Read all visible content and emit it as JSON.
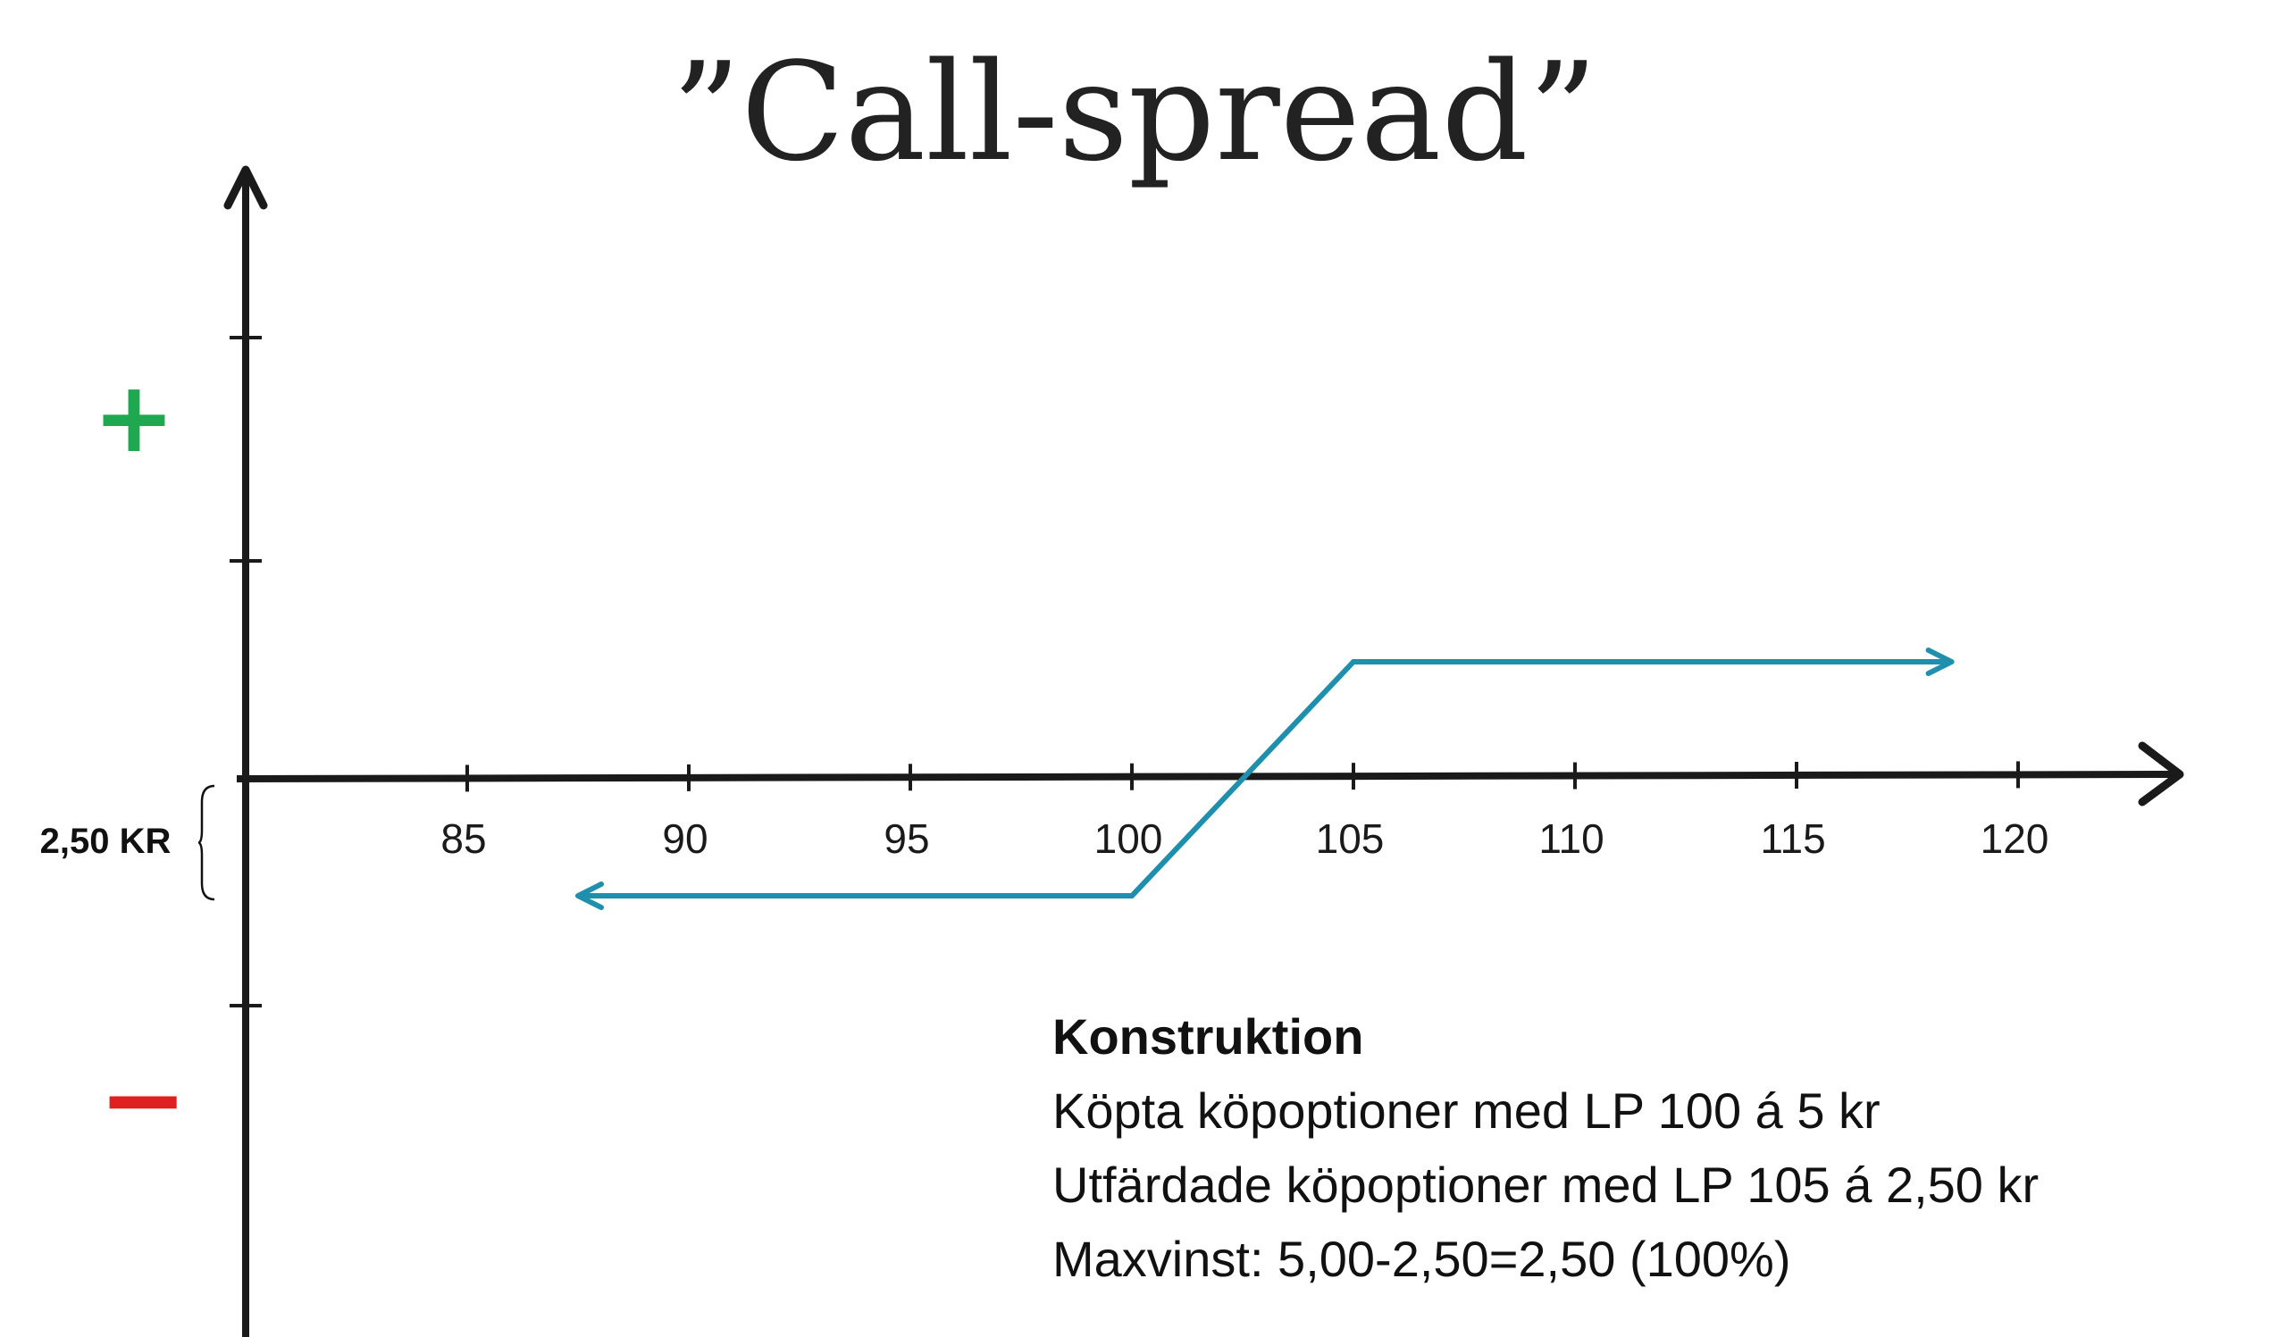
{
  "chart_data": {
    "type": "line",
    "title": "”Call-spread”",
    "xlabel": "",
    "ylabel": "",
    "x_ticks": [
      85,
      90,
      95,
      100,
      105,
      110,
      115,
      120
    ],
    "xlim": [
      80,
      123.5
    ],
    "ylim": [
      -7.5,
      8
    ],
    "y_ticks": [
      -5,
      5,
      10
    ],
    "positive_label": "+",
    "negative_label": "−",
    "series": [
      {
        "color": "#1e8fad",
        "points": [
          [
            87.5,
            -2.5
          ],
          [
            100,
            -2.5
          ],
          [
            105,
            2.5
          ],
          [
            118.5,
            2.5
          ]
        ],
        "arrow_start": true,
        "arrow_end": true
      }
    ],
    "brace": {
      "label": "2,50 KR",
      "from": 0,
      "to": -2.5
    },
    "notes": {
      "heading": "Konstruktion",
      "lines": [
        "Köpta köpoptioner med LP 100 á 5 kr",
        "Utfärdade köpoptioner med LP 105 á 2,50 kr",
        "Maxvinst: 5,00-2,50=2,50 (100%)"
      ]
    },
    "colors": {
      "axis": "#1a1a1a",
      "line": "#1e8fad",
      "positive": "#1fa84f",
      "negative": "#e02020"
    }
  }
}
